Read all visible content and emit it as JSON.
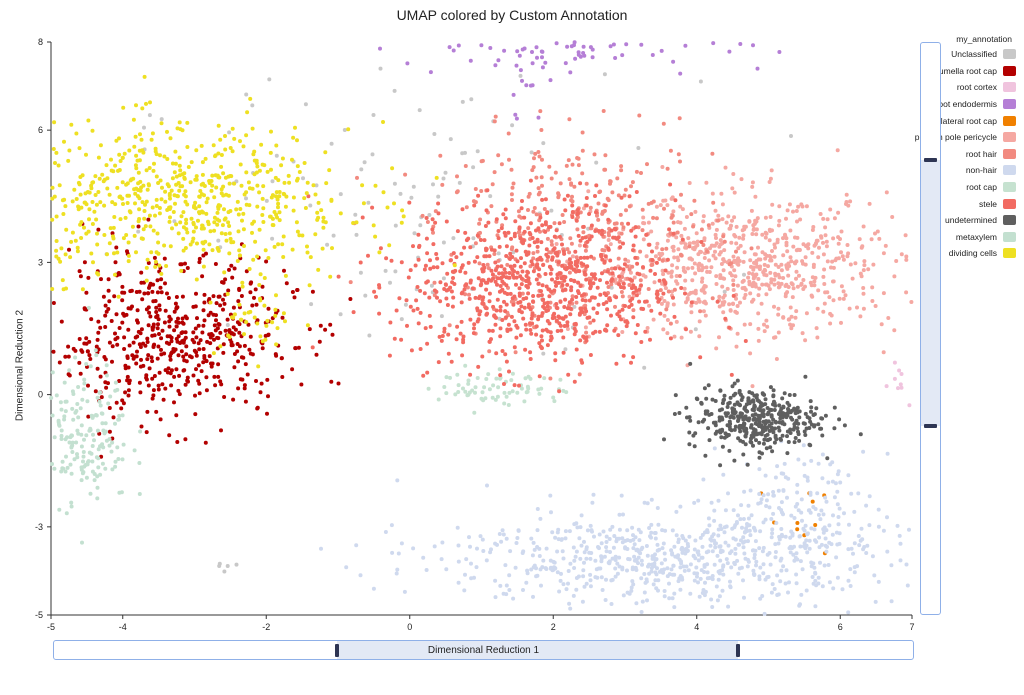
{
  "chart_data": {
    "type": "scatter",
    "title": "UMAP colored by Custom Annotation",
    "xlabel": "Dimensional Reduction 1",
    "ylabel": "Dimensional Reduction 2",
    "xlim": [
      -5,
      7
    ],
    "ylim": [
      -5,
      8
    ],
    "x_ticks": [
      -5,
      -4,
      -2,
      0,
      2,
      4,
      6,
      7
    ],
    "y_ticks": [
      -5,
      -3,
      0,
      3,
      6,
      8
    ],
    "x_tick_labels": [
      "-5",
      "-4",
      "-2",
      "0",
      "2",
      "4",
      "6",
      "7"
    ],
    "y_tick_labels": [
      "-5",
      "-3",
      "0",
      "3",
      "6",
      "8"
    ],
    "grid": false,
    "legend_position": "right",
    "legend_title": "my_annotation",
    "series": [
      {
        "name": "Unclassified",
        "color": "#c8c8c8"
      },
      {
        "name": "columella root cap",
        "color": "#b30000"
      },
      {
        "name": "root cortex",
        "color": "#f0c4de"
      },
      {
        "name": "root endodermis",
        "color": "#b57fd6"
      },
      {
        "name": "lateral root cap",
        "color": "#f08000"
      },
      {
        "name": "phloem pole pericycle",
        "color": "#f5a8a2"
      },
      {
        "name": "root hair",
        "color": "#f28a80"
      },
      {
        "name": "non-hair",
        "color": "#cfd9ee"
      },
      {
        "name": "root cap",
        "color": "#c6e2d0"
      },
      {
        "name": "stele",
        "color": "#f26b62"
      },
      {
        "name": "undetermined",
        "color": "#5f5f5f"
      },
      {
        "name": "metaxylem",
        "color": "#c3e0d0"
      },
      {
        "name": "dividing cells",
        "color": "#eee022"
      }
    ],
    "clusters": [
      {
        "series": "Unclassified",
        "cx": 0.0,
        "cy": 4.0,
        "sx": 2.0,
        "sy": 1.6,
        "n": 120
      },
      {
        "series": "Unclassified",
        "cx": -2.6,
        "cy": -3.9,
        "sx": 0.1,
        "sy": 0.08,
        "n": 5
      },
      {
        "series": "columella root cap",
        "cx": -3.3,
        "cy": 1.3,
        "sx": 0.85,
        "sy": 0.9,
        "n": 560
      },
      {
        "series": "root cortex",
        "cx": 6.8,
        "cy": 0.3,
        "sx": 0.12,
        "sy": 0.3,
        "n": 10
      },
      {
        "series": "root endodermis",
        "cx": 2.4,
        "cy": 7.8,
        "sx": 1.3,
        "sy": 0.2,
        "n": 70
      },
      {
        "series": "root endodermis",
        "cx": 1.6,
        "cy": 7.0,
        "sx": 0.15,
        "sy": 0.45,
        "n": 12
      },
      {
        "series": "lateral root cap",
        "cx": 5.5,
        "cy": -2.7,
        "sx": 0.25,
        "sy": 0.6,
        "n": 10
      },
      {
        "series": "phloem pole pericycle",
        "cx": 4.7,
        "cy": 2.9,
        "sx": 1.05,
        "sy": 0.8,
        "n": 700
      },
      {
        "series": "root hair",
        "cx": 2.3,
        "cy": 3.6,
        "sx": 1.0,
        "sy": 1.1,
        "n": 400
      },
      {
        "series": "non-hair",
        "cx": 3.6,
        "cy": -3.7,
        "sx": 1.6,
        "sy": 0.55,
        "n": 700
      },
      {
        "series": "non-hair",
        "cx": 5.3,
        "cy": -2.6,
        "sx": 0.5,
        "sy": 0.6,
        "n": 150
      },
      {
        "series": "root cap",
        "cx": 1.3,
        "cy": 0.15,
        "sx": 0.45,
        "sy": 0.22,
        "n": 70
      },
      {
        "series": "stele",
        "cx": 1.8,
        "cy": 2.5,
        "sx": 0.95,
        "sy": 0.95,
        "n": 800
      },
      {
        "series": "undetermined",
        "cx": 4.8,
        "cy": -0.55,
        "sx": 0.45,
        "sy": 0.35,
        "n": 380
      },
      {
        "series": "metaxylem",
        "cx": -4.6,
        "cy": -0.9,
        "sx": 0.35,
        "sy": 0.8,
        "n": 200
      },
      {
        "series": "dividing cells",
        "cx": -3.2,
        "cy": 4.4,
        "sx": 1.2,
        "sy": 0.85,
        "n": 640
      },
      {
        "series": "dividing cells",
        "cx": -2.1,
        "cy": 1.8,
        "sx": 0.3,
        "sy": 0.5,
        "n": 40
      }
    ]
  }
}
